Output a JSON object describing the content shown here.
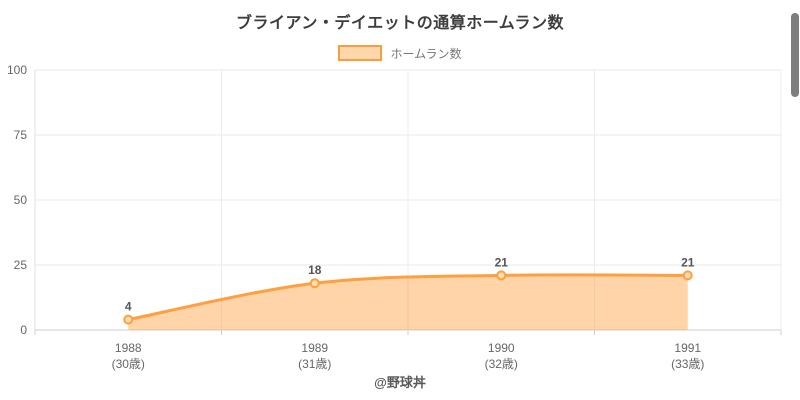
{
  "page": {
    "footer": "@野球丼"
  },
  "chart_data": {
    "type": "area",
    "title": "ブライアン・デイエットの通算ホームラン数",
    "legend": [
      {
        "label": "ホームラン数",
        "swatch_fill": "#fcd8ab",
        "swatch_border": "#fa9d41"
      }
    ],
    "legend_position": "top",
    "categories": [
      "1988",
      "1989",
      "1990",
      "1991"
    ],
    "category_sublabels": [
      "(30歳)",
      "(31歳)",
      "(32歳)",
      "(33歳)"
    ],
    "series": [
      {
        "name": "ホームラン数",
        "values": [
          4,
          18,
          21,
          21
        ]
      }
    ],
    "data_labels": [
      "4",
      "18",
      "21",
      "21"
    ],
    "ylim": [
      0,
      100
    ],
    "yticks": [
      0,
      25,
      50,
      75,
      100
    ],
    "grid": true,
    "colors": {
      "line": "#ff9f40",
      "fill": "rgba(255,159,64,0.45)",
      "point_fill": "#ffdcb2",
      "data_label": "#555555",
      "axis_text": "#666666",
      "gridline": "#e9e9e9",
      "baseline": "#cfcfcf"
    }
  },
  "scrollbar": {
    "visible": true
  }
}
